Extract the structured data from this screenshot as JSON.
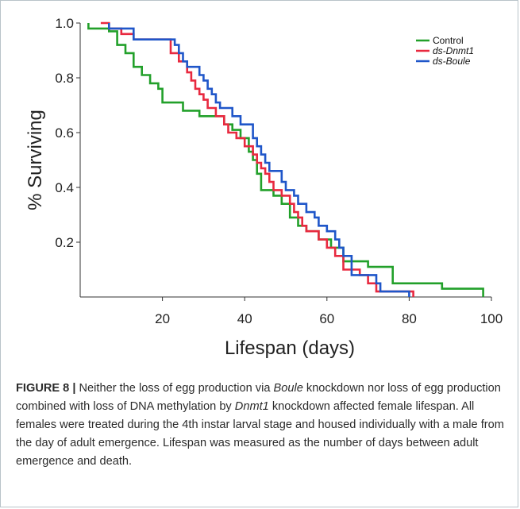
{
  "chart_data": {
    "type": "line",
    "xlabel": "Lifespan (days)",
    "ylabel": "% Surviving",
    "xlim": [
      0,
      100
    ],
    "ylim": [
      0,
      1.0
    ],
    "x_ticks": [
      20,
      40,
      60,
      80,
      100
    ],
    "y_ticks": [
      0.2,
      0.4,
      0.6,
      0.8,
      1.0
    ],
    "y_tick_labels": [
      "0.2",
      "0.4",
      "0.6",
      "0.8",
      "1.0"
    ],
    "grid": false,
    "legend_position": "top-right",
    "step": true,
    "series": [
      {
        "name": "Control",
        "italic": false,
        "color": "#22a02a",
        "points": [
          [
            2,
            1.0
          ],
          [
            2,
            0.98
          ],
          [
            7,
            0.98
          ],
          [
            7,
            0.97
          ],
          [
            9,
            0.97
          ],
          [
            9,
            0.92
          ],
          [
            11,
            0.92
          ],
          [
            11,
            0.89
          ],
          [
            13,
            0.89
          ],
          [
            13,
            0.84
          ],
          [
            15,
            0.84
          ],
          [
            15,
            0.81
          ],
          [
            17,
            0.81
          ],
          [
            17,
            0.78
          ],
          [
            19,
            0.78
          ],
          [
            19,
            0.76
          ],
          [
            20,
            0.76
          ],
          [
            20,
            0.71
          ],
          [
            25,
            0.71
          ],
          [
            25,
            0.68
          ],
          [
            29,
            0.68
          ],
          [
            29,
            0.66
          ],
          [
            35,
            0.66
          ],
          [
            35,
            0.63
          ],
          [
            37,
            0.63
          ],
          [
            37,
            0.61
          ],
          [
            39,
            0.61
          ],
          [
            39,
            0.58
          ],
          [
            41,
            0.58
          ],
          [
            41,
            0.53
          ],
          [
            42,
            0.53
          ],
          [
            42,
            0.5
          ],
          [
            43,
            0.5
          ],
          [
            43,
            0.45
          ],
          [
            44,
            0.45
          ],
          [
            44,
            0.39
          ],
          [
            47,
            0.39
          ],
          [
            47,
            0.37
          ],
          [
            49,
            0.37
          ],
          [
            49,
            0.34
          ],
          [
            51,
            0.34
          ],
          [
            51,
            0.29
          ],
          [
            53,
            0.29
          ],
          [
            53,
            0.26
          ],
          [
            55,
            0.26
          ],
          [
            55,
            0.24
          ],
          [
            58,
            0.24
          ],
          [
            58,
            0.21
          ],
          [
            61,
            0.21
          ],
          [
            61,
            0.18
          ],
          [
            64,
            0.18
          ],
          [
            64,
            0.13
          ],
          [
            70,
            0.13
          ],
          [
            70,
            0.11
          ],
          [
            76,
            0.11
          ],
          [
            76,
            0.05
          ],
          [
            88,
            0.05
          ],
          [
            88,
            0.03
          ],
          [
            98,
            0.03
          ],
          [
            98,
            0.0
          ]
        ]
      },
      {
        "name": "ds-Dnmt1",
        "italic": true,
        "color": "#e8293f",
        "points": [
          [
            5,
            1.0
          ],
          [
            7,
            1.0
          ],
          [
            7,
            0.98
          ],
          [
            10,
            0.98
          ],
          [
            10,
            0.96
          ],
          [
            13,
            0.96
          ],
          [
            13,
            0.94
          ],
          [
            22,
            0.94
          ],
          [
            22,
            0.89
          ],
          [
            24,
            0.89
          ],
          [
            24,
            0.86
          ],
          [
            26,
            0.86
          ],
          [
            26,
            0.82
          ],
          [
            27,
            0.82
          ],
          [
            27,
            0.79
          ],
          [
            28,
            0.79
          ],
          [
            28,
            0.76
          ],
          [
            29,
            0.76
          ],
          [
            29,
            0.74
          ],
          [
            30,
            0.74
          ],
          [
            30,
            0.72
          ],
          [
            31,
            0.72
          ],
          [
            31,
            0.69
          ],
          [
            33,
            0.69
          ],
          [
            33,
            0.66
          ],
          [
            35,
            0.66
          ],
          [
            35,
            0.63
          ],
          [
            36,
            0.63
          ],
          [
            36,
            0.6
          ],
          [
            38,
            0.6
          ],
          [
            38,
            0.58
          ],
          [
            40,
            0.58
          ],
          [
            40,
            0.55
          ],
          [
            42,
            0.55
          ],
          [
            42,
            0.52
          ],
          [
            43,
            0.52
          ],
          [
            43,
            0.49
          ],
          [
            44,
            0.49
          ],
          [
            44,
            0.47
          ],
          [
            45,
            0.47
          ],
          [
            45,
            0.45
          ],
          [
            46,
            0.45
          ],
          [
            46,
            0.42
          ],
          [
            47,
            0.42
          ],
          [
            47,
            0.39
          ],
          [
            49,
            0.39
          ],
          [
            49,
            0.37
          ],
          [
            51,
            0.37
          ],
          [
            51,
            0.34
          ],
          [
            52,
            0.34
          ],
          [
            52,
            0.31
          ],
          [
            53,
            0.31
          ],
          [
            53,
            0.29
          ],
          [
            54,
            0.29
          ],
          [
            54,
            0.26
          ],
          [
            55,
            0.26
          ],
          [
            55,
            0.24
          ],
          [
            58,
            0.24
          ],
          [
            58,
            0.21
          ],
          [
            60,
            0.21
          ],
          [
            60,
            0.18
          ],
          [
            62,
            0.18
          ],
          [
            62,
            0.15
          ],
          [
            64,
            0.15
          ],
          [
            64,
            0.1
          ],
          [
            68,
            0.1
          ],
          [
            68,
            0.08
          ],
          [
            70,
            0.08
          ],
          [
            70,
            0.05
          ],
          [
            72,
            0.05
          ],
          [
            72,
            0.02
          ],
          [
            81,
            0.02
          ],
          [
            81,
            0.0
          ]
        ]
      },
      {
        "name": "ds-Boule",
        "italic": true,
        "color": "#1f56c9",
        "points": [
          [
            7,
            1.0
          ],
          [
            7,
            0.98
          ],
          [
            13,
            0.98
          ],
          [
            13,
            0.94
          ],
          [
            23,
            0.94
          ],
          [
            23,
            0.92
          ],
          [
            24,
            0.92
          ],
          [
            24,
            0.89
          ],
          [
            25,
            0.89
          ],
          [
            25,
            0.86
          ],
          [
            26,
            0.86
          ],
          [
            26,
            0.84
          ],
          [
            29,
            0.84
          ],
          [
            29,
            0.81
          ],
          [
            30,
            0.81
          ],
          [
            30,
            0.79
          ],
          [
            31,
            0.79
          ],
          [
            31,
            0.76
          ],
          [
            32,
            0.76
          ],
          [
            32,
            0.74
          ],
          [
            33,
            0.74
          ],
          [
            33,
            0.71
          ],
          [
            34,
            0.71
          ],
          [
            34,
            0.69
          ],
          [
            37,
            0.69
          ],
          [
            37,
            0.66
          ],
          [
            39,
            0.66
          ],
          [
            39,
            0.63
          ],
          [
            42,
            0.63
          ],
          [
            42,
            0.58
          ],
          [
            43,
            0.58
          ],
          [
            43,
            0.55
          ],
          [
            44,
            0.55
          ],
          [
            44,
            0.52
          ],
          [
            45,
            0.52
          ],
          [
            45,
            0.49
          ],
          [
            46,
            0.49
          ],
          [
            46,
            0.46
          ],
          [
            49,
            0.46
          ],
          [
            49,
            0.42
          ],
          [
            50,
            0.42
          ],
          [
            50,
            0.39
          ],
          [
            52,
            0.39
          ],
          [
            52,
            0.37
          ],
          [
            53,
            0.37
          ],
          [
            53,
            0.34
          ],
          [
            55,
            0.34
          ],
          [
            55,
            0.31
          ],
          [
            57,
            0.31
          ],
          [
            57,
            0.29
          ],
          [
            58,
            0.29
          ],
          [
            58,
            0.26
          ],
          [
            60,
            0.26
          ],
          [
            60,
            0.24
          ],
          [
            62,
            0.24
          ],
          [
            62,
            0.21
          ],
          [
            63,
            0.21
          ],
          [
            63,
            0.18
          ],
          [
            64,
            0.18
          ],
          [
            64,
            0.15
          ],
          [
            66,
            0.15
          ],
          [
            66,
            0.08
          ],
          [
            72,
            0.08
          ],
          [
            72,
            0.05
          ],
          [
            73,
            0.05
          ],
          [
            73,
            0.02
          ],
          [
            80,
            0.02
          ],
          [
            80,
            0.0
          ]
        ]
      }
    ]
  },
  "caption": {
    "figure_label": "FIGURE 8 |",
    "segments": [
      {
        "text": " Neither the loss of egg production via ",
        "italic": false
      },
      {
        "text": "Boule",
        "italic": true
      },
      {
        "text": " knockdown nor loss of egg production combined with loss of DNA methylation by ",
        "italic": false
      },
      {
        "text": "Dnmt1",
        "italic": true
      },
      {
        "text": " knockdown affected female lifespan. All females were treated during the 4th instar larval stage and housed individually with a male from the day of adult emergence. Lifespan was measured as the number of days between adult emergence and death.",
        "italic": false
      }
    ]
  }
}
